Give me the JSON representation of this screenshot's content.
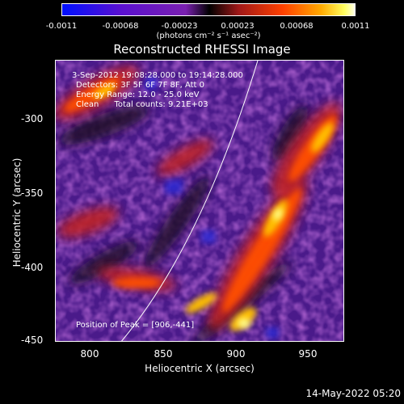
{
  "colorbar": {
    "ticks": [
      "-0.0011",
      "-0.00068",
      "-0.00023",
      "0.00023",
      "0.00068",
      "0.0011"
    ],
    "units": "(photons cm⁻² s⁻¹ asec⁻²)",
    "colors": [
      "#0010ff",
      "#5a10d0",
      "#9020b0",
      "#c02060",
      "#ff4000",
      "#ffaa00",
      "#ffff80",
      "#ffffff"
    ]
  },
  "title": "Reconstructed RHESSI Image",
  "info": {
    "time_range": "3-Sep-2012 19:08:28.000 to 19:14:28.000",
    "detectors": "Detectors: 3F 5F 6F 7F 8F, Att 0",
    "energy": "Energy Range: 12.0 - 25.0 keV",
    "clean": "Clean      Total counts: 9.21E+03",
    "peak": "Position of Peak = [906,-441]"
  },
  "axes": {
    "x_label": "Heliocentric X (arcsec)",
    "y_label": "Heliocentric Y (arcsec)",
    "x_ticks": [
      "800",
      "850",
      "900",
      "950"
    ],
    "y_ticks": [
      "-300",
      "-350",
      "-400",
      "-450"
    ]
  },
  "timestamp": "14-May-2022 05:20"
}
